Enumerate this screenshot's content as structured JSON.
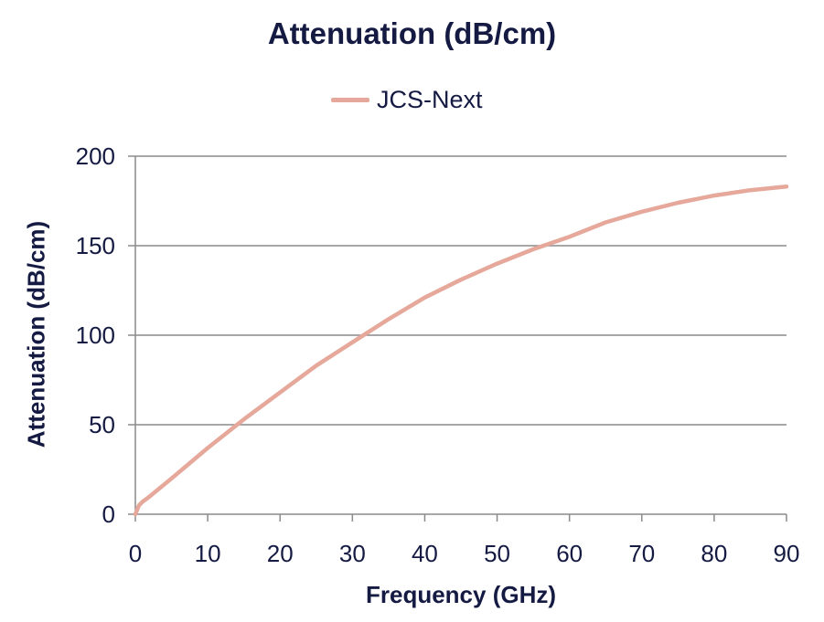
{
  "chart_data": {
    "type": "line",
    "title": "Attenuation (dB/cm)",
    "xlabel": "Frequency (GHz)",
    "ylabel": "Attenuation (dB/cm)",
    "xlim": [
      0,
      90
    ],
    "ylim": [
      0,
      200
    ],
    "x_ticks": [
      "0",
      "10",
      "20",
      "30",
      "40",
      "50",
      "60",
      "70",
      "80",
      "90"
    ],
    "y_ticks": [
      "0",
      "50",
      "100",
      "150",
      "200"
    ],
    "grid": "horizontal",
    "legend": "top-center",
    "series": [
      {
        "name": "JCS-Next",
        "color": "#e6a89a",
        "x": [
          0,
          0.5,
          1,
          2,
          5,
          10,
          15,
          20,
          25,
          30,
          35,
          40,
          45,
          50,
          55,
          60,
          65,
          70,
          75,
          80,
          85,
          90
        ],
        "y": [
          0,
          5,
          7,
          10,
          20,
          37,
          53,
          68,
          83,
          96,
          109,
          121,
          131,
          140,
          148,
          155,
          163,
          169,
          174,
          178,
          181,
          183
        ]
      }
    ]
  }
}
